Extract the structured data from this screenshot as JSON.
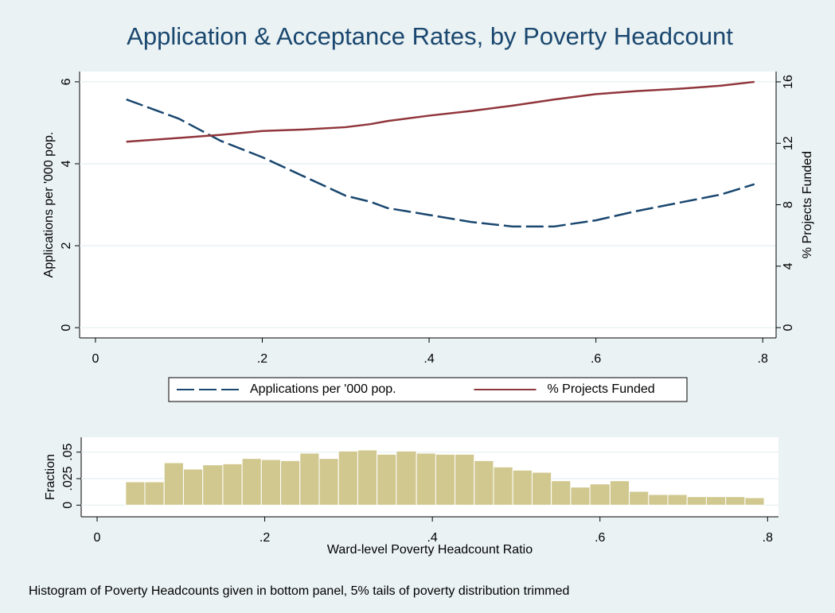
{
  "chart_data": [
    {
      "type": "line",
      "title": "Application & Acceptance Rates, by Poverty Headcount",
      "ylabel": "Applications per '000 pop.",
      "y2label": "% Projects Funded",
      "x": [
        0.037,
        0.1,
        0.15,
        0.2,
        0.25,
        0.3,
        0.33,
        0.35,
        0.4,
        0.45,
        0.5,
        0.55,
        0.6,
        0.65,
        0.7,
        0.75,
        0.79
      ],
      "series": [
        {
          "name": "Applications per '000 pop.",
          "color": "#1a476f",
          "line_style": "dashed",
          "values": [
            5.57,
            5.1,
            4.56,
            4.16,
            3.69,
            3.22,
            3.07,
            2.92,
            2.75,
            2.58,
            2.47,
            2.47,
            2.62,
            2.85,
            3.05,
            3.25,
            3.5
          ]
        },
        {
          "name": "% Projects Funded",
          "color": "#90353b",
          "line_style": "solid",
          "axis": "y2",
          "values": [
            12.1,
            12.35,
            12.55,
            12.8,
            12.9,
            13.05,
            13.25,
            13.45,
            13.8,
            14.1,
            14.45,
            14.85,
            15.2,
            15.4,
            15.55,
            15.75,
            16.0
          ]
        }
      ],
      "xlim": [
        -0.019,
        0.816
      ],
      "ylim": [
        -0.25,
        6.25
      ],
      "y2lim": [
        -0.67,
        16.67
      ],
      "xticks": [
        {
          "value": 0,
          "label": "0"
        },
        {
          "value": 0.2,
          "label": ".2"
        },
        {
          "value": 0.4,
          "label": ".4"
        },
        {
          "value": 0.6,
          "label": ".6"
        },
        {
          "value": 0.8,
          "label": ".8"
        }
      ],
      "yticks": [
        0,
        2,
        4,
        6
      ],
      "y2ticks": [
        0,
        4,
        8,
        12,
        16
      ],
      "grid": true,
      "legend": "bottom"
    },
    {
      "type": "histogram",
      "ylabel": "Fraction",
      "xlabel": "Ward-level Poverty Headcount Ratio",
      "note": "Histogram of Poverty Headcounts given in bottom panel, 5% tails of poverty distribution trimmed",
      "color": "#d1c88f",
      "bins": [
        0.034,
        0.057,
        0.08,
        0.103,
        0.126,
        0.15,
        0.173,
        0.196,
        0.219,
        0.242,
        0.265,
        0.288,
        0.311,
        0.334,
        0.357,
        0.381,
        0.404,
        0.427,
        0.45,
        0.473,
        0.496,
        0.519,
        0.542,
        0.565,
        0.588,
        0.612,
        0.635,
        0.658,
        0.681,
        0.704,
        0.727,
        0.75,
        0.773,
        0.796
      ],
      "values": [
        0.022,
        0.022,
        0.04,
        0.034,
        0.038,
        0.039,
        0.044,
        0.043,
        0.042,
        0.049,
        0.044,
        0.051,
        0.052,
        0.048,
        0.051,
        0.049,
        0.048,
        0.048,
        0.042,
        0.036,
        0.033,
        0.031,
        0.023,
        0.017,
        0.02,
        0.023,
        0.013,
        0.01,
        0.01,
        0.008,
        0.008,
        0.008,
        0.007
      ],
      "xlim": [
        -0.019,
        0.813
      ],
      "ylim": [
        -0.011,
        0.064
      ],
      "xticks": [
        {
          "value": 0,
          "label": "0"
        },
        {
          "value": 0.2,
          "label": ".2"
        },
        {
          "value": 0.4,
          "label": ".4"
        },
        {
          "value": 0.6,
          "label": ".6"
        },
        {
          "value": 0.8,
          "label": ".8"
        }
      ],
      "yticks": [
        {
          "value": 0,
          "label": "0"
        },
        {
          "value": 0.025,
          "label": ".025"
        },
        {
          "value": 0.05,
          "label": ".05"
        }
      ],
      "grid": true
    }
  ]
}
